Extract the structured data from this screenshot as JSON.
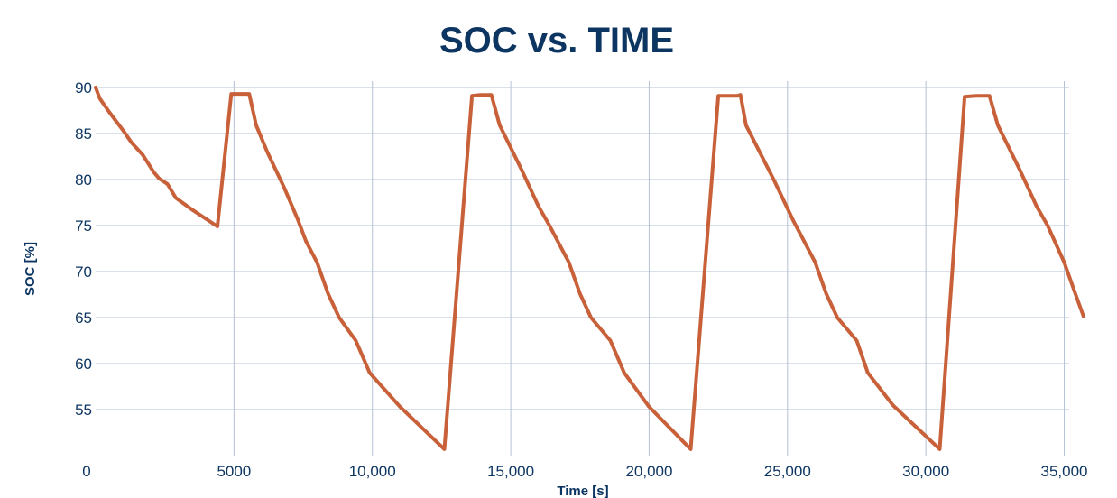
{
  "chart_data": {
    "type": "line",
    "title": "SOC vs. TIME",
    "xlabel": "Time [s]",
    "ylabel": "SOC [%]",
    "xlim": [
      0,
      35700
    ],
    "ylim": [
      50,
      90
    ],
    "x_ticks": [
      0,
      5000,
      10000,
      15000,
      20000,
      25000,
      30000,
      35000
    ],
    "x_tick_labels": [
      "0",
      "5000",
      "10,000",
      "15,000",
      "20,000",
      "25,000",
      "30,000",
      "35,000"
    ],
    "y_ticks": [
      55,
      60,
      65,
      70,
      75,
      80,
      85,
      90
    ],
    "y_tick_labels": [
      "55",
      "60",
      "65",
      "70",
      "75",
      "80",
      "85",
      "90"
    ],
    "grid": true,
    "series": [
      {
        "name": "SOC",
        "color": "#c8613a",
        "points": [
          [
            0,
            90.0
          ],
          [
            150,
            88.8
          ],
          [
            500,
            87.3
          ],
          [
            1000,
            85.3
          ],
          [
            1300,
            84.0
          ],
          [
            1700,
            82.7
          ],
          [
            2100,
            80.8
          ],
          [
            2300,
            80.1
          ],
          [
            2600,
            79.5
          ],
          [
            2900,
            78.0
          ],
          [
            3500,
            76.7
          ],
          [
            4400,
            74.9
          ],
          [
            4900,
            89.3
          ],
          [
            5200,
            89.3
          ],
          [
            5550,
            89.3
          ],
          [
            5800,
            85.9
          ],
          [
            6200,
            83.0
          ],
          [
            6800,
            79.2
          ],
          [
            7300,
            75.7
          ],
          [
            7600,
            73.3
          ],
          [
            8000,
            71.0
          ],
          [
            8400,
            67.6
          ],
          [
            8800,
            65.0
          ],
          [
            9400,
            62.5
          ],
          [
            9900,
            59.0
          ],
          [
            11000,
            55.3
          ],
          [
            12600,
            50.7
          ],
          [
            13600,
            89.1
          ],
          [
            13900,
            89.2
          ],
          [
            14300,
            89.2
          ],
          [
            14600,
            85.9
          ],
          [
            15400,
            81.0
          ],
          [
            16000,
            77.1
          ],
          [
            16400,
            75.0
          ],
          [
            17100,
            71.0
          ],
          [
            17500,
            67.6
          ],
          [
            17900,
            65.0
          ],
          [
            18600,
            62.5
          ],
          [
            19100,
            59.0
          ],
          [
            20000,
            55.3
          ],
          [
            21500,
            50.7
          ],
          [
            22500,
            89.1
          ],
          [
            23000,
            89.1
          ],
          [
            23200,
            89.1
          ],
          [
            23300,
            89.2
          ],
          [
            23500,
            85.9
          ],
          [
            24500,
            80.0
          ],
          [
            25200,
            75.6
          ],
          [
            26000,
            71.0
          ],
          [
            26400,
            67.6
          ],
          [
            26800,
            65.0
          ],
          [
            27500,
            62.5
          ],
          [
            27900,
            59.0
          ],
          [
            28800,
            55.5
          ],
          [
            30500,
            50.7
          ],
          [
            31400,
            89.0
          ],
          [
            31800,
            89.1
          ],
          [
            32300,
            89.1
          ],
          [
            32600,
            85.9
          ],
          [
            33400,
            81.0
          ],
          [
            34000,
            77.1
          ],
          [
            34400,
            75.0
          ],
          [
            35000,
            71.0
          ],
          [
            35400,
            67.6
          ],
          [
            35700,
            65.1
          ]
        ]
      }
    ]
  }
}
